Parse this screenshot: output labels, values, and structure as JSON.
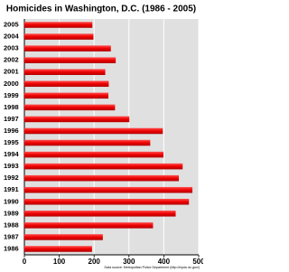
{
  "chart_data": {
    "type": "hbar",
    "title": "Homicides in Washington, D.C. (1986 - 2005)",
    "source": "Data source: Metropolitan Police Department (http://mpdc.dc.gov/)",
    "categories": [
      "2005",
      "2004",
      "2003",
      "2002",
      "2001",
      "2000",
      "1999",
      "1998",
      "1997",
      "1996",
      "1995",
      "1994",
      "1993",
      "1992",
      "1991",
      "1990",
      "1989",
      "1988",
      "1987",
      "1986"
    ],
    "values": [
      195,
      198,
      248,
      262,
      232,
      242,
      241,
      260,
      301,
      397,
      361,
      399,
      454,
      443,
      482,
      472,
      434,
      369,
      225,
      194
    ],
    "color": "#ee0000",
    "xlim": [
      0,
      500
    ],
    "xticks": [
      0,
      100,
      200,
      300,
      400,
      500
    ],
    "grid": true
  }
}
